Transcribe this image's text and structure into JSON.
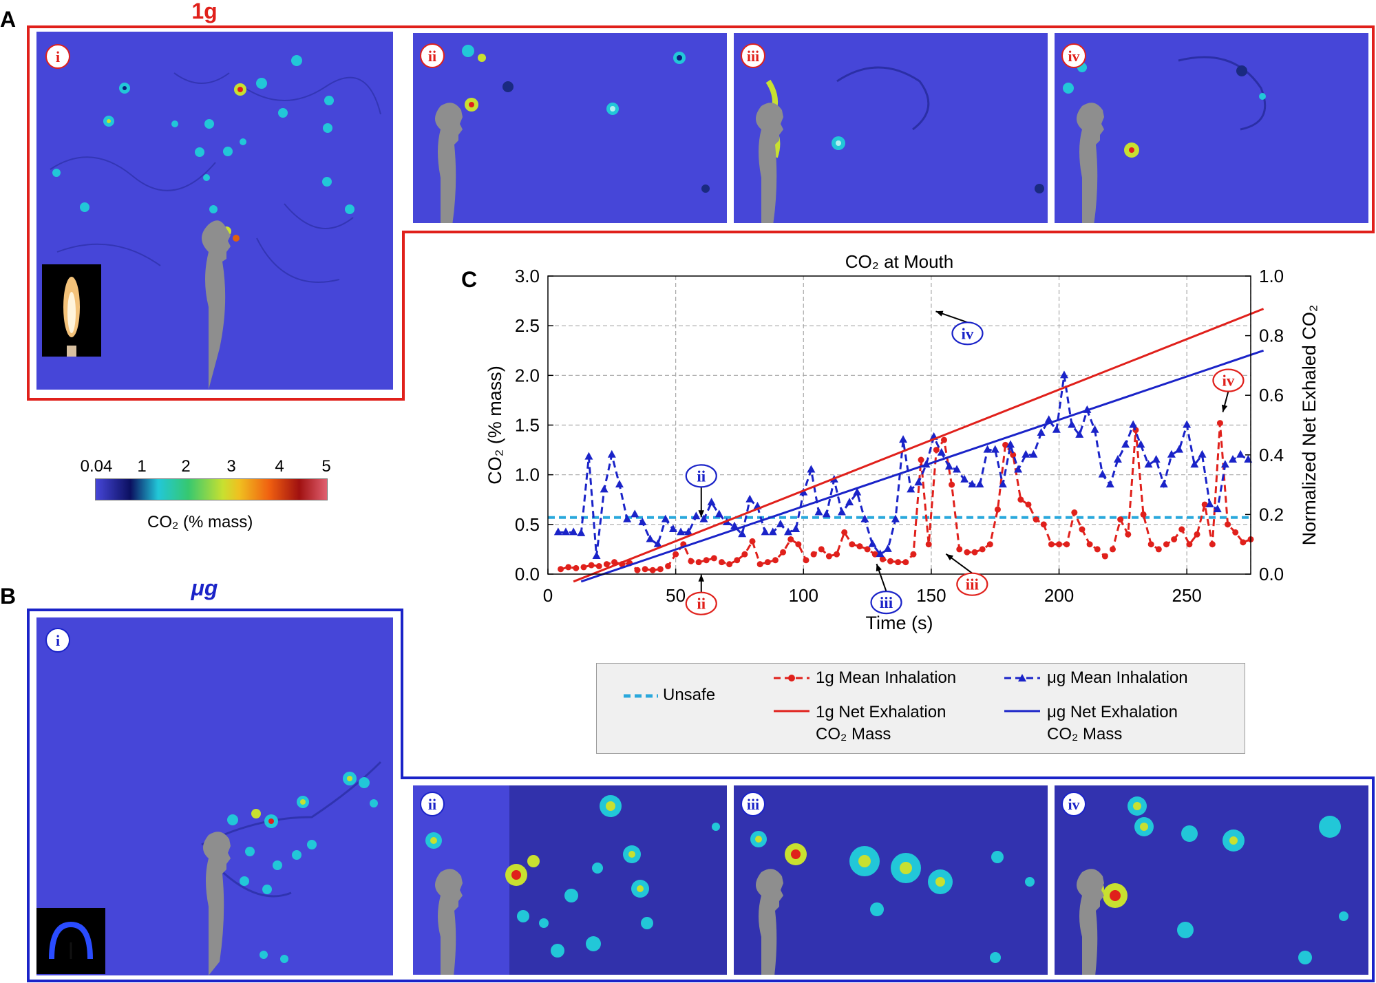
{
  "panels": {
    "a_letter": "A",
    "b_letter": "B",
    "c_letter": "C",
    "a_label": "1g",
    "b_label": "μg"
  },
  "badges": {
    "i": "i",
    "ii": "ii",
    "iii": "iii",
    "iv": "iv"
  },
  "colors": {
    "red": "#e0201b",
    "blue": "#1a23c8",
    "cyan_dash": "#2aa8dc",
    "sim_bg": "#4646d8",
    "person": "#8e8e8e"
  },
  "colorbar": {
    "ticks": [
      "0.04",
      "1",
      "2",
      "3",
      "4",
      "5"
    ],
    "label": "CO₂ (% mass)"
  },
  "legend": {
    "unsafe": "Unsafe",
    "g1_inhale": "1g Mean Inhalation",
    "ug_inhale": "μg Mean Inhalation",
    "g1_exhale_a": "1g Net Exhalation",
    "g1_exhale_b": "CO₂ Mass",
    "ug_exhale_a": "μg Net Exhalation",
    "ug_exhale_b": "CO₂ Mass"
  },
  "chart_data": {
    "type": "line",
    "title": "CO₂ at Mouth",
    "xlabel": "Time (s)",
    "ylabel": "CO₂ (% mass)",
    "y2label": "Normalized Net Exhaled CO₂",
    "xlim": [
      0,
      275
    ],
    "ylim": [
      0,
      3.0
    ],
    "y2lim": [
      0,
      1.0
    ],
    "xticks": [
      0,
      50,
      100,
      150,
      200,
      250
    ],
    "yticks": [
      "0.0",
      "0.5",
      "1.0",
      "1.5",
      "2.0",
      "2.5",
      "3.0"
    ],
    "y2ticks": [
      "0.0",
      "0.2",
      "0.4",
      "0.6",
      "0.8",
      "1.0"
    ],
    "grid": true,
    "unsafe_level": 0.57,
    "series": [
      {
        "name": "1g Mean Inhalation",
        "axis": "left",
        "style": "dashed-circle",
        "x": [
          5,
          8,
          11,
          14,
          17,
          20,
          23,
          26,
          29,
          32,
          35,
          38,
          41,
          44,
          47,
          50,
          53,
          56,
          59,
          62,
          65,
          68,
          71,
          74,
          77,
          80,
          83,
          86,
          89,
          92,
          95,
          98,
          101,
          104,
          107,
          110,
          113,
          116,
          119,
          122,
          125,
          128,
          131,
          134,
          137,
          140,
          143,
          146,
          149,
          152,
          155,
          158,
          161,
          164,
          167,
          170,
          173,
          176,
          179,
          182,
          185,
          188,
          191,
          194,
          197,
          200,
          203,
          206,
          209,
          212,
          215,
          218,
          221,
          224,
          227,
          230,
          233,
          236,
          239,
          242,
          245,
          248,
          251,
          254,
          257,
          260,
          263,
          266,
          269,
          272,
          275
        ],
        "y": [
          0.05,
          0.07,
          0.06,
          0.07,
          0.09,
          0.08,
          0.1,
          0.12,
          0.1,
          0.11,
          0.04,
          0.05,
          0.04,
          0.05,
          0.08,
          0.2,
          0.3,
          0.13,
          0.12,
          0.14,
          0.16,
          0.12,
          0.1,
          0.14,
          0.2,
          0.33,
          0.1,
          0.12,
          0.14,
          0.22,
          0.35,
          0.3,
          0.14,
          0.2,
          0.25,
          0.18,
          0.2,
          0.42,
          0.3,
          0.28,
          0.25,
          0.2,
          0.15,
          0.13,
          0.12,
          0.12,
          0.2,
          1.15,
          0.3,
          1.25,
          1.35,
          0.9,
          0.25,
          0.22,
          0.22,
          0.25,
          0.3,
          0.65,
          1.3,
          1.2,
          0.75,
          0.7,
          0.55,
          0.5,
          0.3,
          0.3,
          0.3,
          0.62,
          0.45,
          0.3,
          0.25,
          0.18,
          0.25,
          0.55,
          0.4,
          1.45,
          0.6,
          0.3,
          0.25,
          0.3,
          0.35,
          0.45,
          0.3,
          0.4,
          0.7,
          0.3,
          1.52,
          0.5,
          0.42,
          0.32,
          0.35
        ]
      },
      {
        "name": "μg Mean Inhalation",
        "axis": "left",
        "style": "dashed-triangle",
        "x": [
          4,
          7,
          10,
          13,
          16,
          19,
          22,
          25,
          28,
          31,
          34,
          37,
          40,
          43,
          46,
          49,
          52,
          55,
          58,
          61,
          64,
          67,
          70,
          73,
          76,
          79,
          82,
          85,
          88,
          91,
          94,
          97,
          100,
          103,
          106,
          109,
          112,
          115,
          118,
          121,
          124,
          127,
          130,
          133,
          136,
          139,
          142,
          145,
          148,
          151,
          154,
          157,
          160,
          163,
          166,
          169,
          172,
          175,
          178,
          181,
          184,
          187,
          190,
          193,
          196,
          199,
          202,
          205,
          208,
          211,
          214,
          217,
          220,
          223,
          226,
          229,
          232,
          235,
          238,
          241,
          244,
          247,
          250,
          253,
          256,
          259,
          262,
          265,
          268,
          271,
          274
        ],
        "y": [
          0.42,
          0.42,
          0.42,
          0.41,
          1.18,
          0.18,
          0.85,
          1.2,
          0.9,
          0.55,
          0.6,
          0.52,
          0.35,
          0.3,
          0.55,
          0.45,
          0.42,
          0.42,
          0.58,
          0.55,
          0.72,
          0.6,
          0.52,
          0.48,
          0.4,
          0.75,
          0.68,
          0.42,
          0.42,
          0.5,
          0.42,
          0.45,
          0.82,
          1.05,
          0.62,
          0.6,
          0.95,
          0.62,
          0.72,
          0.82,
          0.55,
          0.3,
          0.2,
          0.25,
          0.55,
          1.35,
          0.85,
          0.92,
          1.1,
          1.38,
          1.22,
          1.08,
          1.05,
          0.95,
          0.9,
          0.9,
          1.25,
          1.25,
          0.9,
          1.3,
          1.05,
          1.2,
          1.2,
          1.42,
          1.55,
          1.45,
          2.0,
          1.5,
          1.4,
          1.65,
          1.45,
          1.0,
          0.9,
          1.15,
          1.3,
          1.5,
          1.3,
          1.1,
          1.15,
          0.9,
          1.2,
          1.25,
          1.5,
          1.1,
          1.2,
          0.7,
          0.65,
          1.1,
          1.15,
          1.2,
          1.15
        ]
      },
      {
        "name": "1g Net Exhalation CO₂ Mass",
        "axis": "right",
        "style": "solid",
        "x": [
          10,
          280
        ],
        "y": [
          -0.025,
          0.89
        ]
      },
      {
        "name": "μg Net Exhalation CO₂ Mass",
        "axis": "right",
        "style": "solid",
        "x": [
          13,
          280
        ],
        "y": [
          -0.025,
          0.75
        ]
      }
    ],
    "annotations": [
      {
        "label": "ii",
        "series": "μg Mean Inhalation",
        "x": 60,
        "y": 0.42
      },
      {
        "label": "iii",
        "series": "μg Mean Inhalation",
        "x": 127,
        "y": 0.2
      },
      {
        "label": "iv",
        "series": "μg Mean Inhalation",
        "x": 148,
        "y": 2.7
      },
      {
        "label": "ii",
        "series": "1g Mean Inhalation",
        "x": 60,
        "y": 0.12
      },
      {
        "label": "iii",
        "series": "1g Mean Inhalation",
        "x": 152,
        "y": 0.3
      },
      {
        "label": "iv",
        "series": "1g Mean Inhalation",
        "x": 263,
        "y": 1.52
      }
    ]
  }
}
